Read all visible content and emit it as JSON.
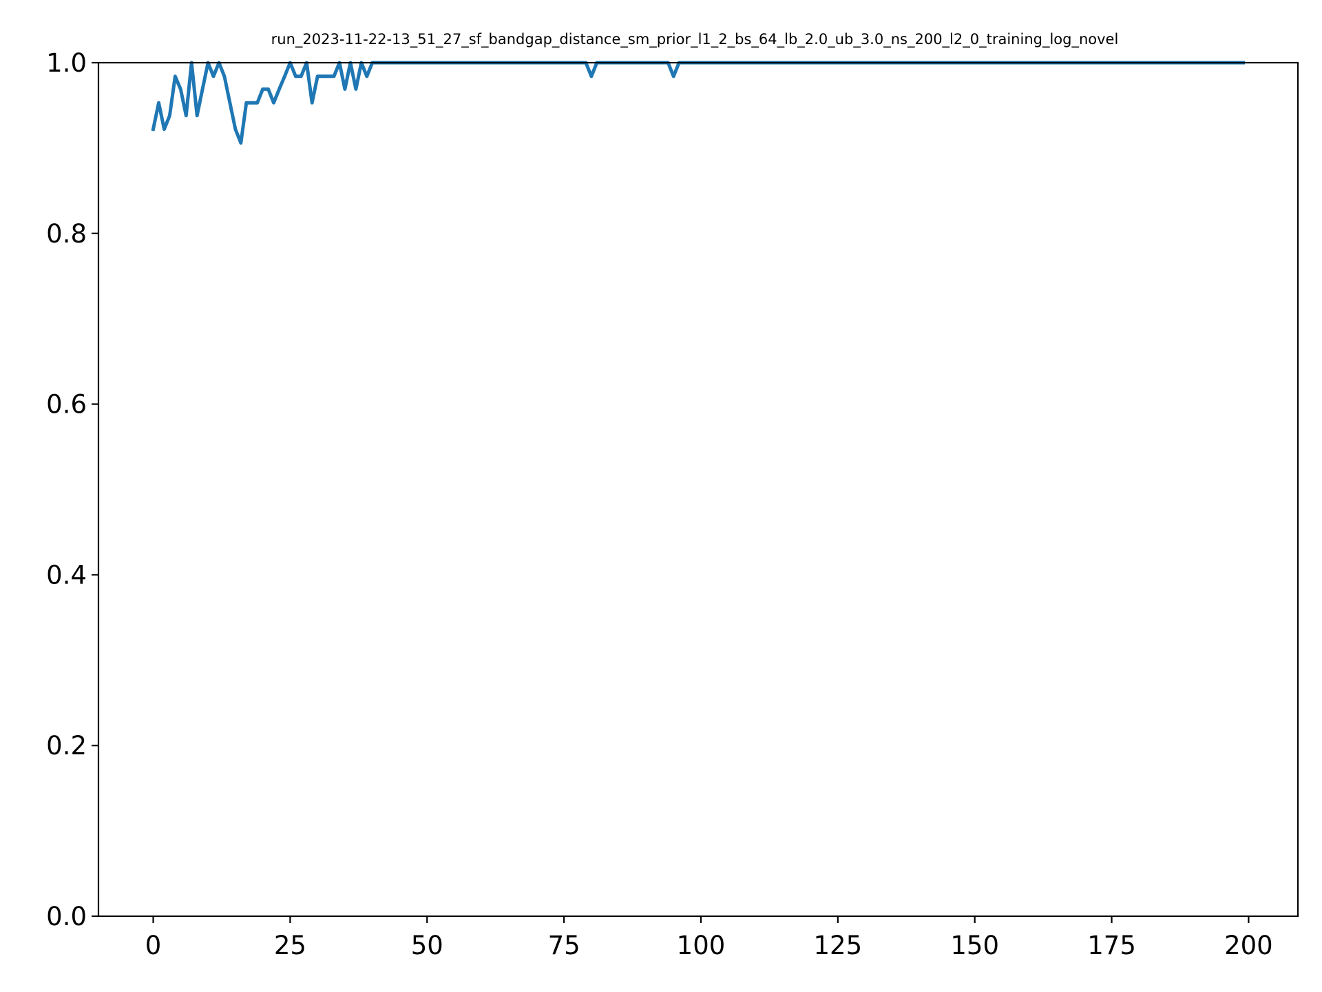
{
  "chart_data": {
    "type": "line",
    "title": "run_2023-11-22-13_51_27_sf_bandgap_distance_sm_prior_l1_2_bs_64_lb_2.0_ub_3.0_ns_200_l2_0_training_log_novel",
    "xlabel": "",
    "ylabel": "",
    "xlim": [
      -10,
      209
    ],
    "ylim": [
      0.0,
      1.0
    ],
    "x_ticks": [
      0,
      25,
      50,
      75,
      100,
      125,
      150,
      175,
      200
    ],
    "x_tick_labels": [
      "0",
      "25",
      "50",
      "75",
      "100",
      "125",
      "150",
      "175",
      "200"
    ],
    "y_ticks": [
      0.0,
      0.2,
      0.4,
      0.6,
      0.8,
      1.0
    ],
    "y_tick_labels": [
      "0.0",
      "0.2",
      "0.4",
      "0.6",
      "0.8",
      "1.0"
    ],
    "grid": false,
    "legend": "none",
    "line_color": "#1f77b4",
    "series": [
      {
        "x": [
          0,
          1,
          2,
          3,
          4,
          5,
          6,
          7,
          8,
          9,
          10,
          11,
          12,
          13,
          14,
          15,
          16,
          17,
          18,
          19,
          20,
          21,
          22,
          23,
          24,
          25,
          26,
          27,
          28,
          29,
          30,
          31,
          32,
          33,
          34,
          35,
          36,
          37,
          38,
          39,
          40,
          41,
          45,
          50,
          55,
          60,
          65,
          70,
          75,
          78,
          79,
          80,
          81,
          82,
          85,
          90,
          93,
          94,
          95,
          96,
          97,
          100,
          110,
          120,
          130,
          140,
          150,
          160,
          170,
          180,
          190,
          199
        ],
        "y": [
          0.922,
          0.953,
          0.922,
          0.938,
          0.984,
          0.969,
          0.938,
          1.0,
          0.938,
          0.969,
          1.0,
          0.984,
          1.0,
          0.984,
          0.953,
          0.922,
          0.906,
          0.953,
          0.953,
          0.953,
          0.969,
          0.969,
          0.953,
          0.969,
          0.984,
          1.0,
          0.984,
          0.984,
          1.0,
          0.953,
          0.984,
          0.984,
          0.984,
          0.984,
          1.0,
          0.969,
          1.0,
          0.969,
          1.0,
          0.984,
          1.0,
          1.0,
          1.0,
          1.0,
          1.0,
          1.0,
          1.0,
          1.0,
          1.0,
          1.0,
          1.0,
          0.984,
          1.0,
          1.0,
          1.0,
          1.0,
          1.0,
          1.0,
          0.984,
          1.0,
          1.0,
          1.0,
          1.0,
          1.0,
          1.0,
          1.0,
          1.0,
          1.0,
          1.0,
          1.0,
          1.0,
          1.0
        ]
      }
    ]
  }
}
